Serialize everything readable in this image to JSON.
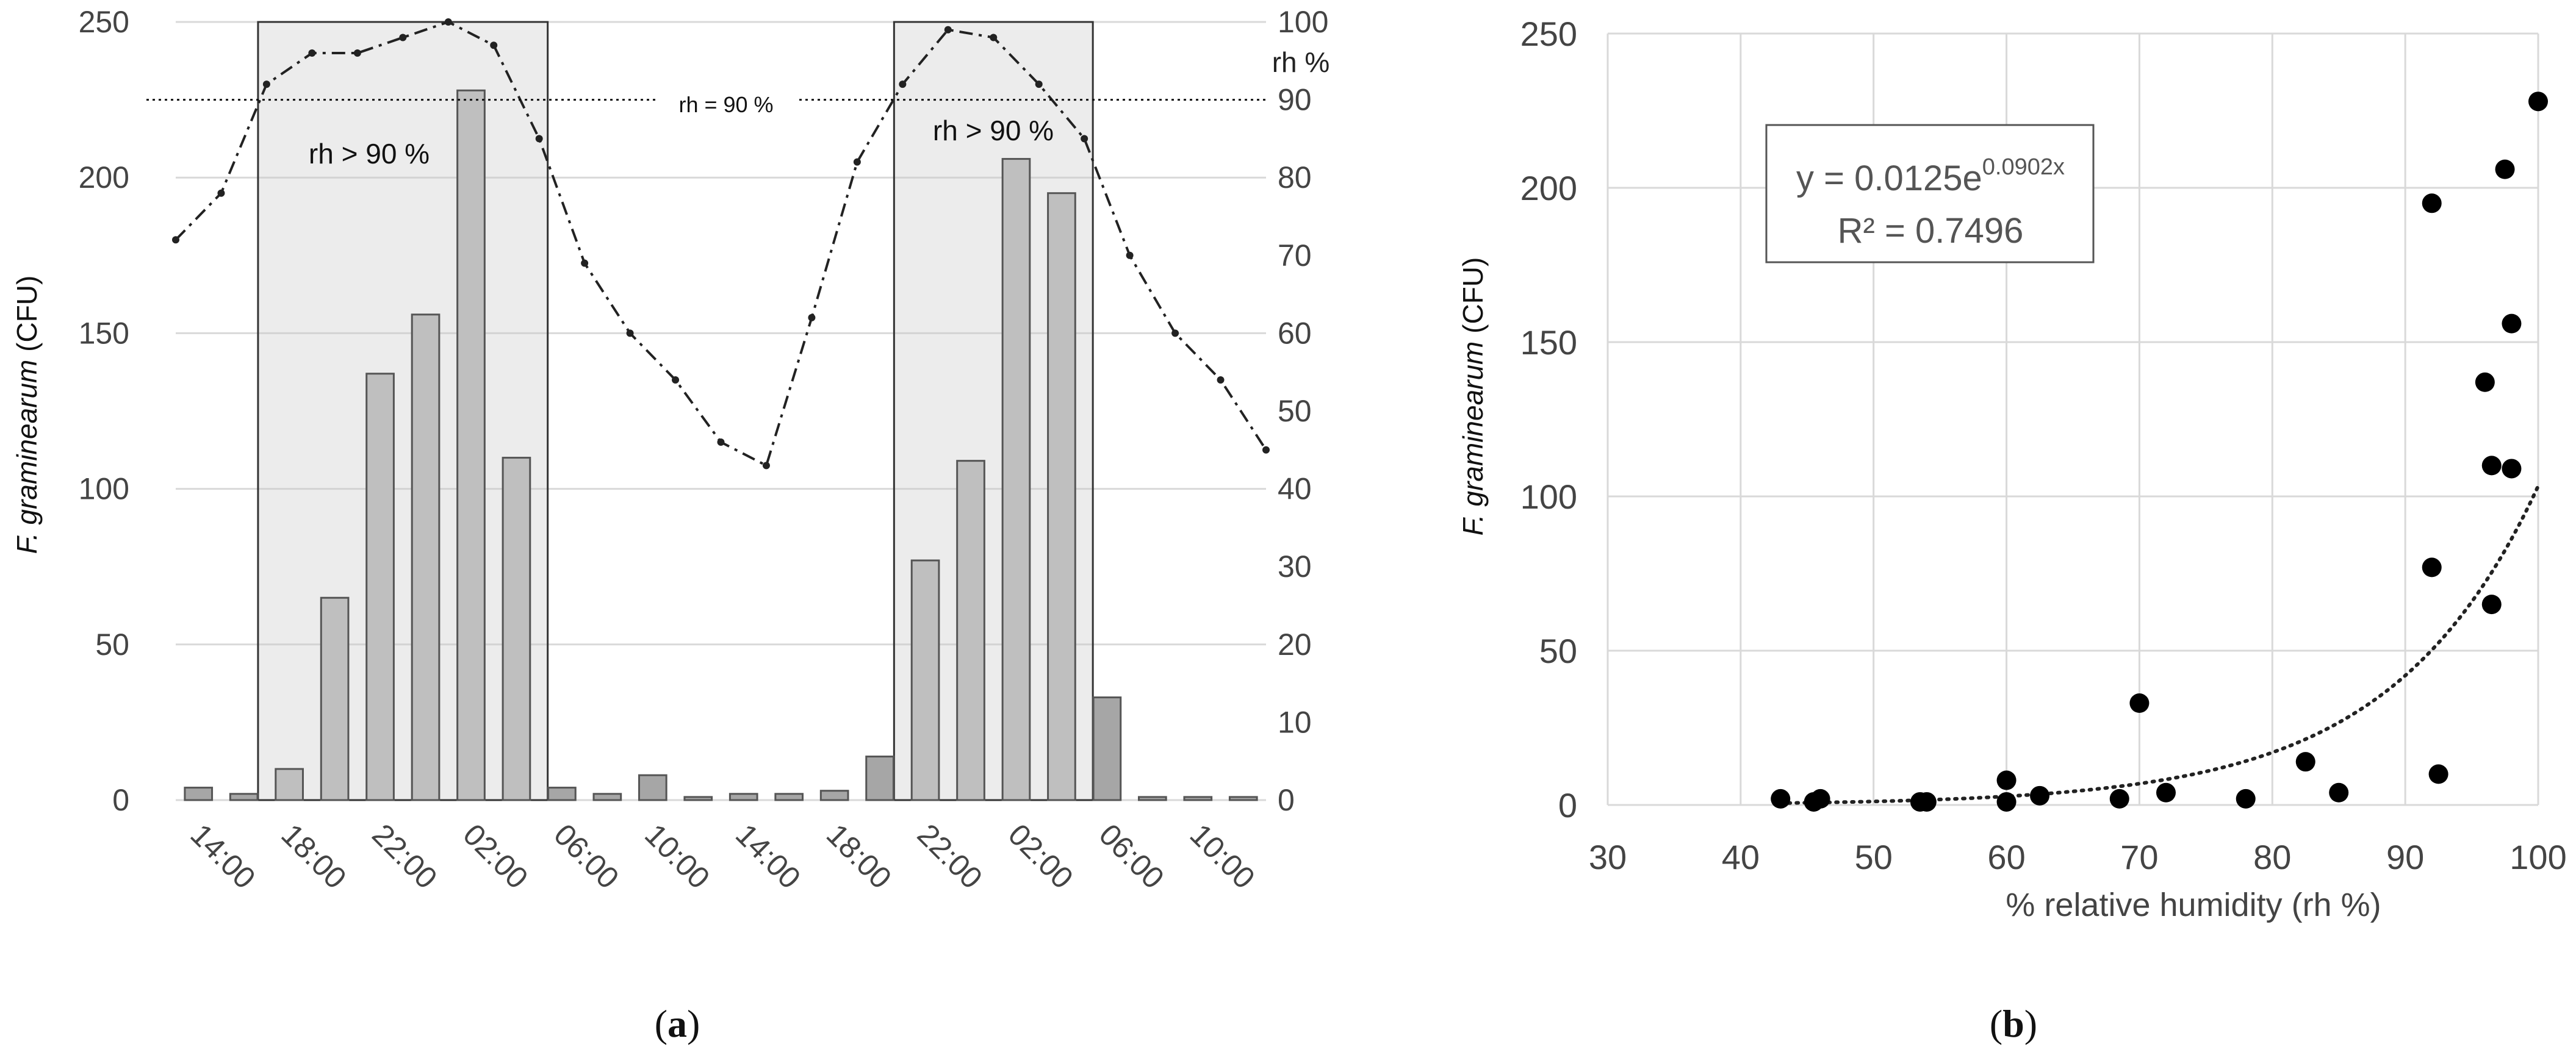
{
  "panels": {
    "a_label_open": "(",
    "a_label_letter": "a",
    "a_label_close": ")",
    "b_label_open": "(",
    "b_label_letter": "b",
    "b_label_close": ")"
  },
  "chart_data": [
    {
      "type": "bar",
      "ylabel_italic": "F. graminearum",
      "ylabel_rest": " (CFU)",
      "y2label": "rh %",
      "ylim": [
        0,
        250
      ],
      "y2lim": [
        0,
        100
      ],
      "yticks": [
        "0",
        "50",
        "100",
        "150",
        "200",
        "250"
      ],
      "y2ticks": [
        "0",
        "10",
        "20",
        "30",
        "40",
        "50",
        "60",
        "70",
        "80",
        "90",
        "100"
      ],
      "tick_labels": [
        "14:00",
        "18:00",
        "22:00",
        "02:00",
        "06:00",
        "10:00",
        "14:00",
        "18:00",
        "22:00",
        "02:00",
        "06:00",
        "10:00"
      ],
      "bars": [
        4,
        2,
        10,
        65,
        137,
        156,
        228,
        110,
        4,
        2,
        8,
        1,
        2,
        2,
        3,
        14,
        77,
        109,
        206,
        195,
        33,
        1,
        1,
        1
      ],
      "rh_line": [
        72,
        78,
        92,
        96,
        96,
        98,
        100,
        97,
        85,
        69,
        60,
        54,
        46,
        43,
        62,
        82,
        92,
        99,
        98,
        92,
        85,
        70,
        60,
        54,
        45
      ],
      "threshold_label": "rh = 90 %",
      "threshold_value": 90,
      "window_label_1": "rh > 90 %",
      "window_label_2": "rh > 90 %",
      "grid": true
    },
    {
      "type": "scatter",
      "ylabel_italic": "F. graminearum",
      "ylabel_rest": " (CFU)",
      "xlabel": "% relative humidity (rh %)",
      "xlim": [
        30,
        100
      ],
      "ylim": [
        0,
        250
      ],
      "xticks": [
        "30",
        "40",
        "50",
        "60",
        "70",
        "80",
        "90",
        "100"
      ],
      "yticks": [
        "0",
        "50",
        "100",
        "150",
        "200",
        "250"
      ],
      "equation_prefix": "y = 0.0125e",
      "equation_exponent": "0.0902x",
      "r_squared": "R² = 0.7496",
      "trend_a": 0.0125,
      "trend_b": 0.0902,
      "points": [
        {
          "x": 43,
          "y": 2
        },
        {
          "x": 45.5,
          "y": 1
        },
        {
          "x": 46,
          "y": 2
        },
        {
          "x": 53.5,
          "y": 1
        },
        {
          "x": 54,
          "y": 1
        },
        {
          "x": 60,
          "y": 8
        },
        {
          "x": 60,
          "y": 1
        },
        {
          "x": 62.5,
          "y": 3
        },
        {
          "x": 68.5,
          "y": 2
        },
        {
          "x": 70,
          "y": 33
        },
        {
          "x": 72,
          "y": 4
        },
        {
          "x": 78,
          "y": 2
        },
        {
          "x": 82.5,
          "y": 14
        },
        {
          "x": 85,
          "y": 4
        },
        {
          "x": 92,
          "y": 195
        },
        {
          "x": 92,
          "y": 77
        },
        {
          "x": 92.5,
          "y": 10
        },
        {
          "x": 96,
          "y": 137
        },
        {
          "x": 96.5,
          "y": 110
        },
        {
          "x": 96.5,
          "y": 65
        },
        {
          "x": 97.5,
          "y": 206
        },
        {
          "x": 98,
          "y": 156
        },
        {
          "x": 98,
          "y": 109
        },
        {
          "x": 100,
          "y": 228
        }
      ],
      "grid": true
    }
  ]
}
